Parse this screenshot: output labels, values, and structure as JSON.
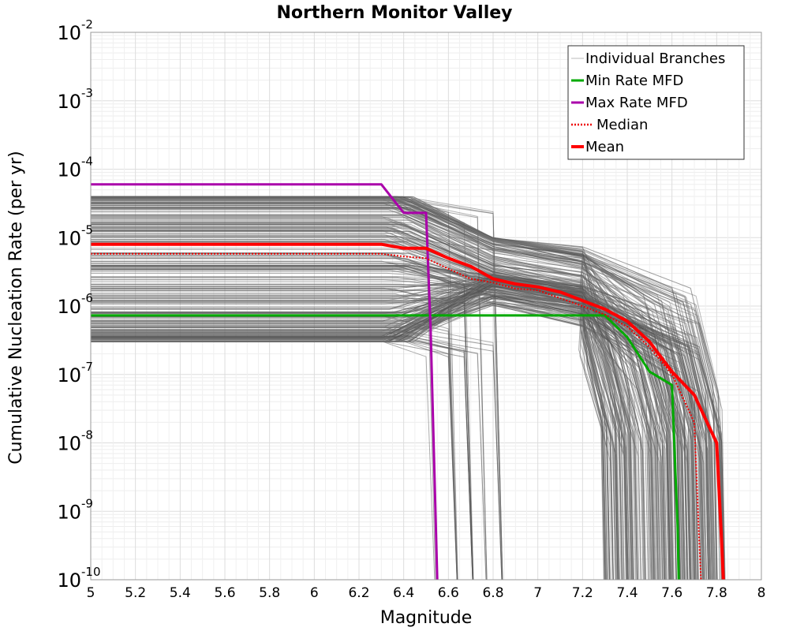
{
  "chart_data": {
    "type": "line",
    "title": "Northern Monitor Valley",
    "xlabel": "Magnitude",
    "ylabel": "Cumulative Nucleation Rate (per yr)",
    "xlim": [
      5,
      8
    ],
    "ylim": [
      1e-10,
      0.01
    ],
    "yscale": "log",
    "grid": true,
    "legend_position": "top-right",
    "x_tick_labels": [
      "5",
      "5.2",
      "5.4",
      "5.6",
      "5.8",
      "6",
      "6.2",
      "6.4",
      "6.6",
      "6.8",
      "7",
      "7.2",
      "7.4",
      "7.6",
      "7.8",
      "8"
    ],
    "y_tick_labels": [
      {
        "base": "10",
        "exp": "-10"
      },
      {
        "base": "10",
        "exp": "-9"
      },
      {
        "base": "10",
        "exp": "-8"
      },
      {
        "base": "10",
        "exp": "-7"
      },
      {
        "base": "10",
        "exp": "-6"
      },
      {
        "base": "10",
        "exp": "-5"
      },
      {
        "base": "10",
        "exp": "-4"
      },
      {
        "base": "10",
        "exp": "-3"
      },
      {
        "base": "10",
        "exp": "-2"
      }
    ],
    "legend": [
      {
        "label": "Individual Branches",
        "color": "#bbbbbb",
        "style": "solid-thin"
      },
      {
        "label": "Min Rate MFD",
        "color": "#00aa00",
        "style": "solid"
      },
      {
        "label": "Max Rate MFD",
        "color": "#aa00aa",
        "style": "solid"
      },
      {
        "label": "Median",
        "color": "#ee0000",
        "style": "dotted"
      },
      {
        "label": "Mean",
        "color": "#ff0000",
        "style": "solid-thick"
      }
    ],
    "branches": {
      "name": "Individual Branches",
      "color": "#555555",
      "approximate_count": 300,
      "flat_rate_range": [
        3e-07,
        4e-05
      ],
      "max_magnitude_range": [
        6.5,
        7.85
      ]
    },
    "series": [
      {
        "name": "Min Rate MFD",
        "color": "#00aa00",
        "x": [
          5.0,
          6.0,
          7.0,
          7.3,
          7.4,
          7.5,
          7.6,
          7.625,
          7.63
        ],
        "y": [
          7.3e-07,
          7.3e-07,
          7.3e-07,
          7.3e-07,
          3.5e-07,
          1.1e-07,
          7e-08,
          6e-10,
          1e-10
        ]
      },
      {
        "name": "Max Rate MFD",
        "color": "#aa00aa",
        "x": [
          5.0,
          6.3,
          6.4,
          6.5,
          6.52,
          6.55
        ],
        "y": [
          6e-05,
          6e-05,
          2.3e-05,
          2.3e-05,
          5e-07,
          1e-10
        ]
      },
      {
        "name": "Median",
        "color": "#ee0000",
        "x": [
          5.0,
          6.3,
          6.4,
          6.5,
          6.6,
          6.7,
          6.8,
          6.9,
          7.0,
          7.1,
          7.2,
          7.3,
          7.4,
          7.5,
          7.6,
          7.7,
          7.72,
          7.73
        ],
        "y": [
          5.8e-06,
          5.8e-06,
          5.3e-06,
          5e-06,
          3.5e-06,
          2.5e-06,
          2.2e-06,
          1.8e-06,
          1.7e-06,
          1.3e-06,
          1e-06,
          7.5e-07,
          5e-07,
          2.5e-07,
          1e-07,
          2e-08,
          5e-10,
          1e-10
        ]
      },
      {
        "name": "Mean",
        "color": "#ff0000",
        "x": [
          5.0,
          6.3,
          6.4,
          6.5,
          6.6,
          6.7,
          6.8,
          6.9,
          7.0,
          7.1,
          7.2,
          7.3,
          7.4,
          7.5,
          7.6,
          7.7,
          7.8,
          7.82,
          7.83
        ],
        "y": [
          8e-06,
          8e-06,
          7e-06,
          7e-06,
          5e-06,
          3.8e-06,
          2.5e-06,
          2.1e-06,
          1.9e-06,
          1.6e-06,
          1.2e-06,
          9e-07,
          6e-07,
          3e-07,
          1.1e-07,
          5e-08,
          1e-08,
          5e-10,
          1e-10
        ]
      }
    ]
  }
}
